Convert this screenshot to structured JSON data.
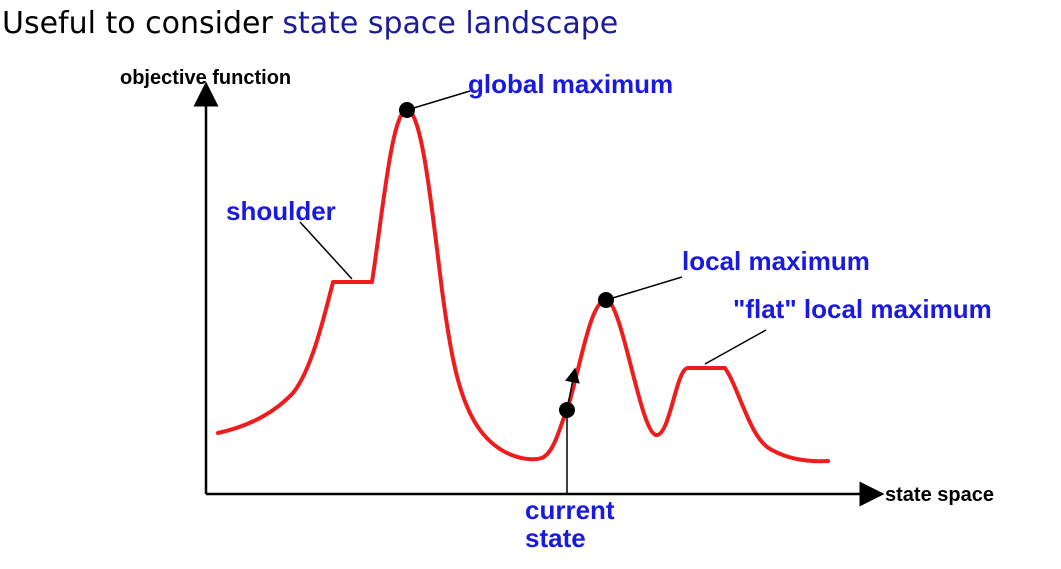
{
  "heading": {
    "prefix": "Useful to consider ",
    "highlight": "state space landscape"
  },
  "axes": {
    "y_label": "objective function",
    "x_label": "state space"
  },
  "annotations": {
    "global_maximum": "global maximum",
    "shoulder": "shoulder",
    "local_maximum": "local maximum",
    "flat_local_maximum": "\"flat\" local maximum",
    "current_state_line1": "current",
    "current_state_line2": "state"
  },
  "colors": {
    "curve": "#ee1c1c",
    "annotation_text": "#1a1adf",
    "heading_highlight": "#1b1b9c",
    "axes": "#000000"
  }
}
